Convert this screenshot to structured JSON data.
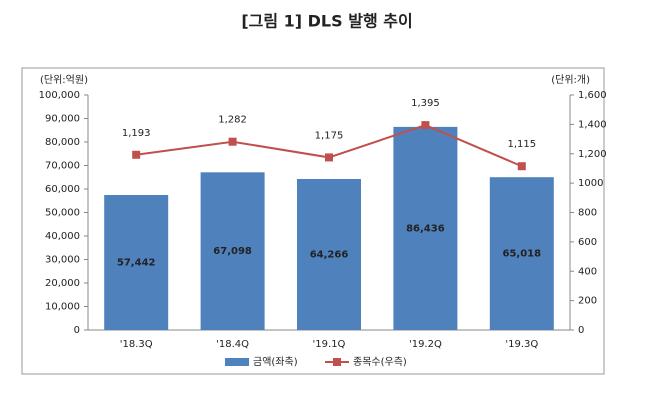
{
  "chart_data": {
    "type": "bar",
    "title": "[그림 1] DLS 발행 추이",
    "y_unit": "(단위:억원)",
    "y2_unit": "(단위:개)",
    "categories": [
      "'18.3Q",
      "'18.4Q",
      "'19.1Q",
      "'19.2Q",
      "'19.3Q"
    ],
    "series": [
      {
        "name": "금액(좌축)",
        "type": "bar",
        "color": "#4f81bd",
        "values": [
          57442,
          67098,
          64266,
          86436,
          65018
        ],
        "value_labels": [
          "57,442",
          "67,098",
          "64,266",
          "86,436",
          "65,018"
        ]
      },
      {
        "name": "종목수(우측)",
        "type": "line",
        "axis": "y2",
        "color": "#c0504d",
        "values": [
          1193,
          1282,
          1175,
          1395,
          1115
        ],
        "value_labels": [
          "1,193",
          "1,282",
          "1,175",
          "1,395",
          "1,115"
        ]
      }
    ],
    "ylim": [
      0,
      100000
    ],
    "yticks": [
      0,
      {
        "value": 10000,
        "label": "10,000"
      },
      {
        "value": 20000,
        "label": "20,000"
      },
      {
        "value": 30000,
        "label": "30,000"
      },
      {
        "value": 40000,
        "label": "40,000"
      },
      {
        "value": 50000,
        "label": "50,000"
      },
      {
        "value": 60000,
        "label": "60,000"
      },
      {
        "value": 70000,
        "label": "70,000"
      },
      {
        "value": 80000,
        "label": "80,000"
      },
      {
        "value": 90000,
        "label": "90,000"
      },
      {
        "value": 100000,
        "label": "100,000"
      }
    ],
    "y2lim": [
      0,
      1600
    ],
    "y2ticks": [
      0,
      200,
      400,
      600,
      800,
      1000,
      {
        "value": 1200,
        "label": "1,200"
      },
      {
        "value": 1400,
        "label": "1,400"
      },
      {
        "value": 1600,
        "label": "1,600"
      }
    ],
    "grid": false,
    "legend": "bottom"
  }
}
